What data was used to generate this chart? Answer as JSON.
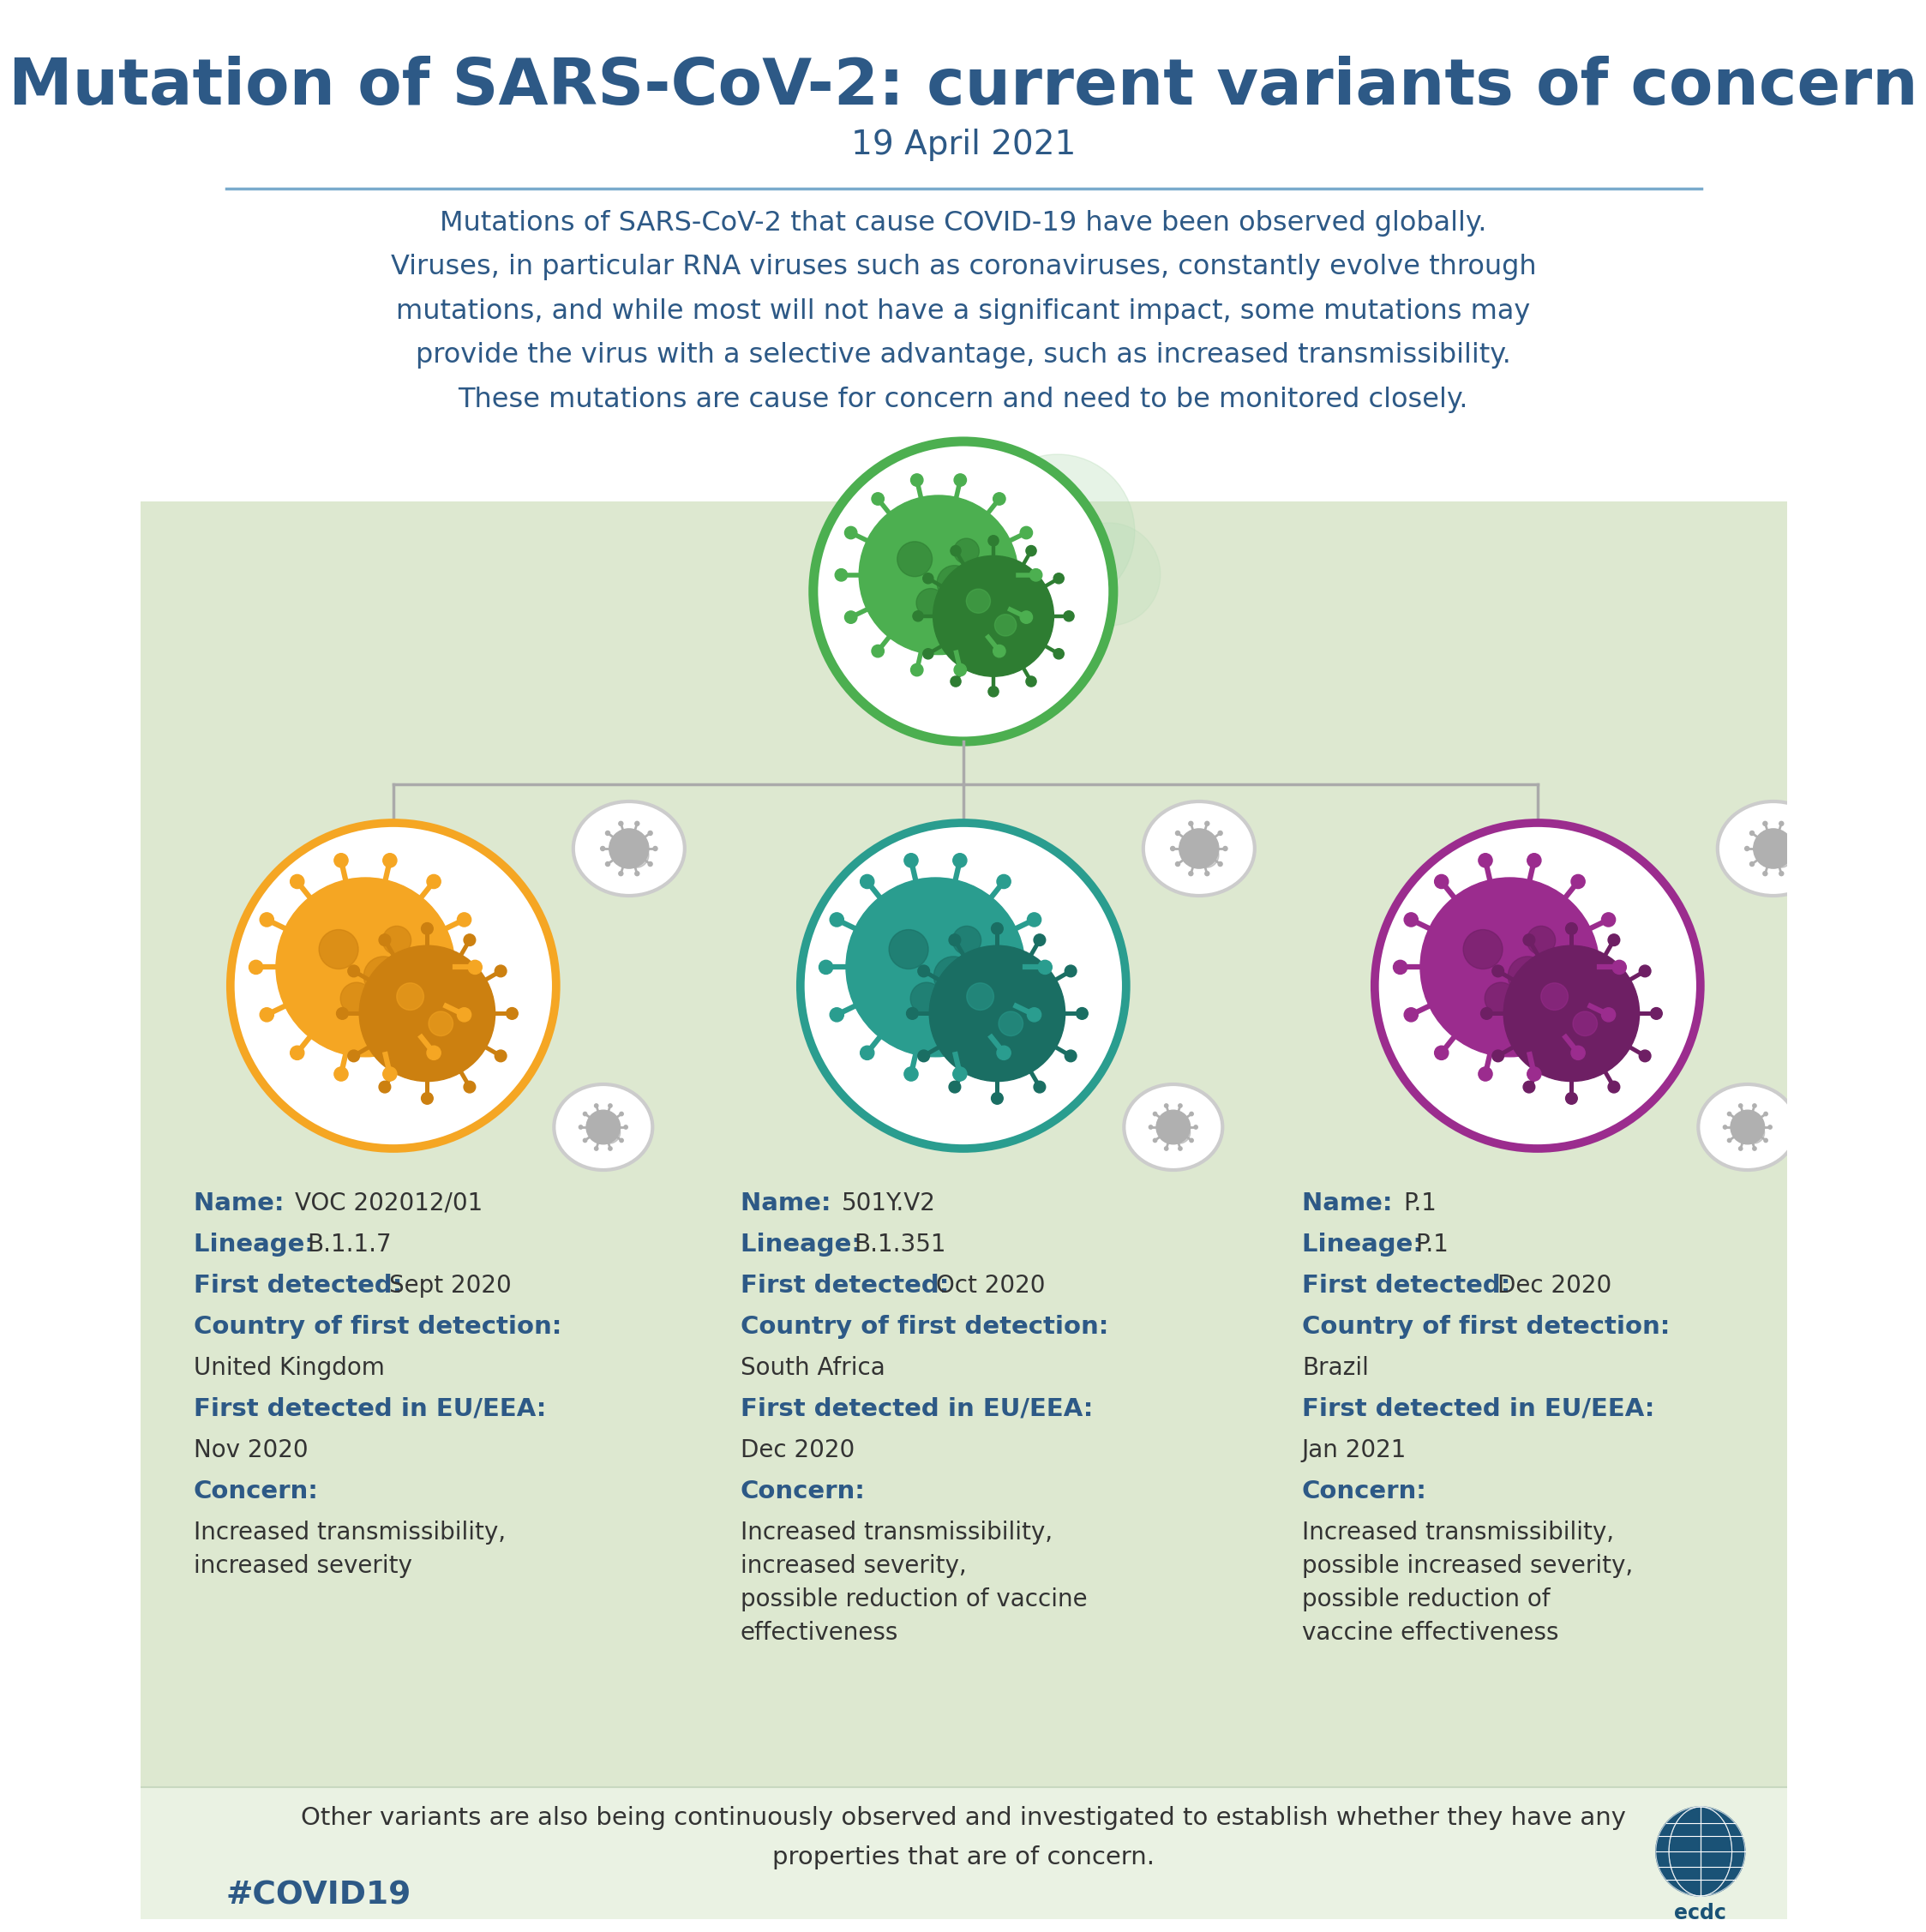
{
  "title": "Mutation of SARS-CoV-2: current variants of concern",
  "subtitle": "19 April 2021",
  "title_color": "#2d5986",
  "subtitle_color": "#2d5986",
  "intro_text": "Mutations of SARS-CoV-2 that cause COVID-19 have been observed globally.\nViruses, in particular RNA viruses such as coronaviruses, constantly evolve through\nmutations, and while most will not have a significant impact, some mutations may\nprovide the virus with a selective advantage, such as increased transmissibility.\nThese mutations are cause for concern and need to be monitored closely.",
  "intro_color": "#2d5986",
  "background_top": "#ffffff",
  "background_bottom": "#dde8d0",
  "divider_color": "#7aabcc",
  "variants": [
    {
      "name": "VOC 202012/01",
      "lineage": "B.1.1.7",
      "first_detected": "Sept 2020",
      "country": "United Kingdom",
      "eu_eea": "Nov 2020",
      "concern": "Increased transmissibility,\nincreased severity",
      "circle_color": "#f5a623",
      "virus_color1": "#f5a623",
      "virus_color2": "#cc8010"
    },
    {
      "name": "501Y.V2",
      "lineage": "B.1.351",
      "first_detected": "Oct 2020",
      "country": "South Africa",
      "eu_eea": "Dec 2020",
      "concern": "Increased transmissibility,\nincreased severity,\npossible reduction of vaccine\neffectiveness",
      "circle_color": "#2a9d8f",
      "virus_color1": "#2a9d8f",
      "virus_color2": "#1a6e63"
    },
    {
      "name": "P.1",
      "lineage": "P.1",
      "first_detected": "Dec 2020",
      "country": "Brazil",
      "eu_eea": "Jan 2021",
      "concern": "Increased transmissibility,\npossible increased severity,\npossible reduction of\nvaccine effectiveness",
      "circle_color": "#9b2c8e",
      "virus_color1": "#9b2c8e",
      "virus_color2": "#6e1f64"
    }
  ],
  "label_bold_color": "#2d5986",
  "label_normal_color": "#333333",
  "footer_text": "Other variants are also being continuously observed and investigated to establish whether they have any\nproperties that are of concern.",
  "footer_color": "#333333",
  "hashtag": "#COVID19",
  "hashtag_color": "#2d5986",
  "green_virus_color1": "#4caf50",
  "green_virus_color2": "#2e7d32",
  "green_circle_color": "#4caf50",
  "grey_virus_color": "#b0b0b0",
  "tree_line_color": "#aaaaaa",
  "green_bg_color": "#dde8d0",
  "white_bg": "#ffffff"
}
